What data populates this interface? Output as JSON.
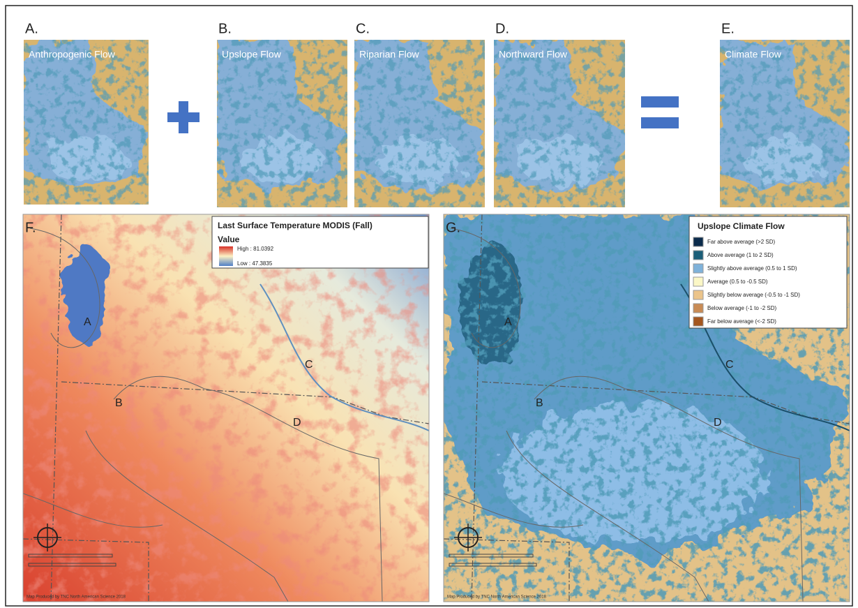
{
  "panels": [
    {
      "letter": "A.",
      "title": "Anthropogenic  Flow"
    },
    {
      "letter": "B.",
      "title": "Upslope Flow"
    },
    {
      "letter": "C.",
      "title": "Riparian Flow"
    },
    {
      "letter": "D.",
      "title": "Northward  Flow"
    },
    {
      "letter": "E.",
      "title": "Climate Flow"
    }
  ],
  "map_f": {
    "letter": "F.",
    "legend_title": "Last Surface Temperature MODIS (Fall)",
    "legend_subtitle": "Value",
    "high": "High : 81.0392",
    "low": "Low : 47.3835",
    "labels": [
      "A",
      "B",
      "C",
      "D"
    ],
    "credit": "Map Produced by TNC North American Science 2018"
  },
  "map_g": {
    "letter": "G.",
    "legend_title": "Upslope Climate Flow",
    "legend_items": [
      {
        "label": "Far above average (>2 SD)",
        "color": "#0c2c4c"
      },
      {
        "label": "Above average (1 to 2 SD)",
        "color": "#1b5e78"
      },
      {
        "label": "Slightly above average (0.5 to 1 SD)",
        "color": "#7fb2da"
      },
      {
        "label": "Average (0.5 to -0.5 SD)",
        "color": "#fbf7c6"
      },
      {
        "label": "Slightly below average (-0.5 to -1 SD)",
        "color": "#ebc48a"
      },
      {
        "label": "Below average (-1 to -2 SD)",
        "color": "#c98b55"
      },
      {
        "label": "Far below average (<-2 SD)",
        "color": "#a4561f"
      }
    ],
    "labels": [
      "A",
      "B",
      "C",
      "D"
    ],
    "credit": "Map Produced by TNC North American Science 2018"
  }
}
